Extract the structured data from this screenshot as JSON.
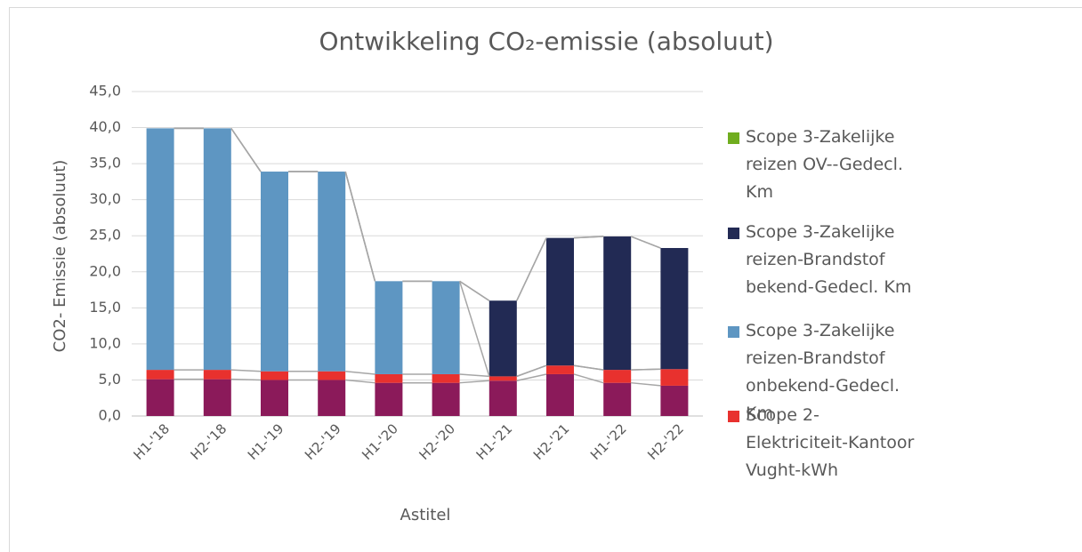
{
  "chart_data": {
    "type": "stacked_bar",
    "title": "Ontwikkeling CO₂-emissie (absoluut)",
    "y_axis_label": "CO2- Emissie (absoluut)",
    "x_axis_label": "Astitel",
    "categories": [
      "H1-'18",
      "H2-'18",
      "H1-'19",
      "H2-'19",
      "H1-'20",
      "H2-'20",
      "H1-'21",
      "H2-'21",
      "H1-'22",
      "H2-'22"
    ],
    "series": [
      {
        "name": null,
        "color": "#8b1a5a",
        "values": [
          5.1,
          5.1,
          5.0,
          5.0,
          4.6,
          4.6,
          4.9,
          5.8,
          4.6,
          4.2
        ]
      },
      {
        "name": "Scope 2-Elektriciteit-Kantoor Vught-kWh",
        "color": "#e8312e",
        "values": [
          1.3,
          1.3,
          1.2,
          1.2,
          1.2,
          1.2,
          0.6,
          1.2,
          1.8,
          2.3
        ]
      },
      {
        "name": "Scope 3-Zakelijke reizen-Brandstof onbekend-Gedecl. Km",
        "color": "#5e96c2",
        "values": [
          33.5,
          33.5,
          27.7,
          27.7,
          12.9,
          12.9,
          0,
          0,
          0,
          0
        ]
      },
      {
        "name": "Scope 3-Zakelijke reizen-Brandstof bekend-Gedecl. Km",
        "color": "#222a54",
        "values": [
          0,
          0,
          0,
          0,
          0,
          0,
          10.5,
          17.7,
          18.5,
          16.8
        ]
      },
      {
        "name": "Scope 3-Zakelijke reizen OV--Gedecl. Km",
        "color": "#70ad1f",
        "values": [
          0,
          0,
          0,
          0,
          0,
          0,
          0,
          0,
          0,
          0
        ]
      }
    ],
    "ylim": [
      0,
      45
    ],
    "yticks": [
      {
        "value": 0,
        "label": "0,0"
      },
      {
        "value": 5,
        "label": "5,0"
      },
      {
        "value": 10,
        "label": "10,0"
      },
      {
        "value": 15,
        "label": "15,0"
      },
      {
        "value": 20,
        "label": "20,0"
      },
      {
        "value": 25,
        "label": "25,0"
      },
      {
        "value": 30,
        "label": "30,0"
      },
      {
        "value": 35,
        "label": "35,0"
      },
      {
        "value": 40,
        "label": "40,0"
      },
      {
        "value": 45,
        "label": "45,0"
      }
    ],
    "grid": true,
    "series_lines": true,
    "legend": "right"
  }
}
